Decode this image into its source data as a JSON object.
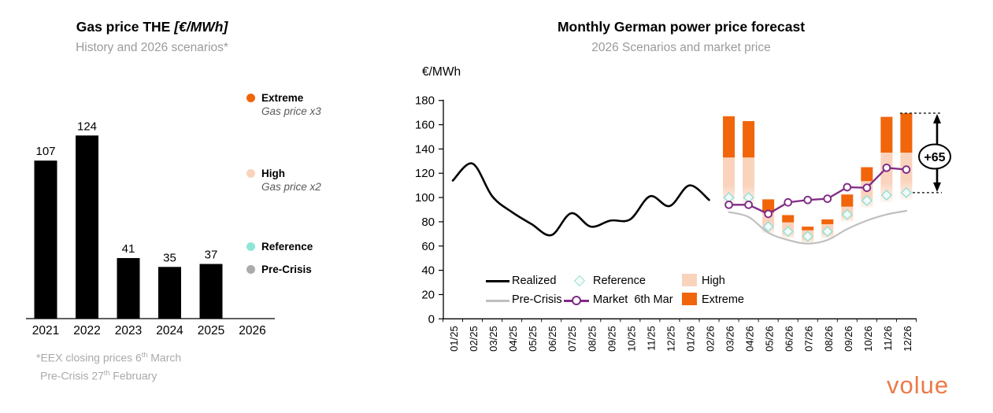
{
  "left_chart": {
    "title": "Gas price THE",
    "title_unit": "[€/MWh]",
    "subtitle": "History and 2026 scenarios*",
    "legend": [
      {
        "label": "Extreme",
        "sublabel": "Gas price x3",
        "color": "#F1650B"
      },
      {
        "label": "High",
        "sublabel": "Gas price x2",
        "color": "#FAD3BD"
      },
      {
        "label": "Reference",
        "sublabel": "",
        "color": "#8FE5D5"
      },
      {
        "label": "Pre-Crisis",
        "sublabel": "",
        "color": "#ABABAB"
      }
    ],
    "footnote": [
      {
        "pre": "*EEX closing prices 6",
        "sup": "th",
        "post": " March"
      },
      {
        "pre": "Pre-Crisis 27",
        "sup": "th",
        "post": " February"
      }
    ]
  },
  "right_chart": {
    "title": "Monthly German power price forecast",
    "subtitle": "2026 Scenarios and market price",
    "axis_unit": "€/MWh",
    "legend": {
      "realized": "Realized",
      "pre_crisis": "Pre-Crisis",
      "reference": "Reference",
      "market": "Market  6th Mar",
      "high": "High",
      "extreme": "Extreme"
    }
  },
  "logo_text": "volue",
  "colors": {
    "extreme": "#F1650B",
    "high": "#FAD3BD",
    "reference_stroke": "#9ADFD2",
    "reference_fill": "#F1FBF9",
    "pre_crisis": "#BFBFBF",
    "market": "#7F2A85",
    "realized": "#000000",
    "subtitle_gray": "#9B9B9B",
    "logo_orange": "#EB7A48"
  },
  "chart_data": [
    {
      "type": "bar",
      "title": "Gas price THE [€/MWh]",
      "subtitle": "History and 2026 scenarios*",
      "categories": [
        "2021",
        "2022",
        "2023",
        "2024",
        "2025",
        "2026"
      ],
      "values": [
        107,
        124,
        41,
        35,
        37,
        null
      ],
      "bar_color": "#000000",
      "ylim": [
        0,
        140
      ],
      "grid": false,
      "note": "2026 has no historical bar, only scenario legend: Extreme = Gas price x3, High = Gas price x2, Reference, Pre-Crisis"
    },
    {
      "type": "line",
      "title": "Monthly German power price forecast",
      "subtitle": "2026 Scenarios and market price",
      "ylabel": "€/MWh",
      "ylim": [
        0,
        180
      ],
      "ytick_step": 20,
      "grid": false,
      "legend_position": "inside-bottom",
      "x": [
        "01/25",
        "02/25",
        "03/25",
        "04/25",
        "05/25",
        "06/25",
        "07/25",
        "08/25",
        "09/25",
        "10/25",
        "11/25",
        "12/25",
        "01/26",
        "02/26",
        "03/26",
        "04/26",
        "05/26",
        "06/26",
        "07/26",
        "08/26",
        "09/26",
        "10/26",
        "11/26",
        "12/26"
      ],
      "series": [
        {
          "name": "Realized",
          "type": "smooth-line",
          "color": "#000000",
          "start_index": 0,
          "values": [
            114,
            128,
            101,
            88,
            78,
            69,
            87,
            76,
            81,
            82,
            101,
            93,
            110,
            98
          ]
        },
        {
          "name": "Pre-Crisis",
          "type": "smooth-line",
          "color": "#BFBFBF",
          "start_index": 14,
          "values": [
            88,
            84,
            71,
            65,
            62,
            65,
            74,
            81,
            86,
            89
          ]
        },
        {
          "name": "High",
          "type": "floating-bar",
          "color": "#FAD3BD",
          "start_index": 14,
          "low": [
            100,
            100,
            76,
            72,
            68,
            72,
            86,
            97.5,
            102,
            104
          ],
          "high": [
            133,
            133,
            87.5,
            79.5,
            73,
            78,
            92.5,
            113.5,
            137,
            137
          ]
        },
        {
          "name": "Extreme",
          "type": "floating-bar",
          "color": "#F1650B",
          "start_index": 14,
          "low": [
            133,
            133,
            87.5,
            79.5,
            73,
            78,
            92.5,
            113.5,
            137,
            137
          ],
          "high": [
            167,
            163,
            98.5,
            85.5,
            76,
            82,
            102.5,
            125,
            166.5,
            169.5
          ]
        },
        {
          "name": "Reference",
          "type": "diamond-marker",
          "color": "#9ADFD2",
          "start_index": 14,
          "values": [
            100,
            100,
            76,
            72,
            68,
            72,
            86,
            97.5,
            102,
            104
          ]
        },
        {
          "name": "Market 6th Mar",
          "type": "marker-line",
          "color": "#7F2A85",
          "start_index": 14,
          "values": [
            94,
            94,
            86.5,
            96,
            98,
            99,
            108.5,
            108,
            124.5,
            123
          ]
        }
      ],
      "annotation": {
        "label": "+65",
        "x": "12/26",
        "from": 104,
        "to": 169.5
      }
    }
  ]
}
